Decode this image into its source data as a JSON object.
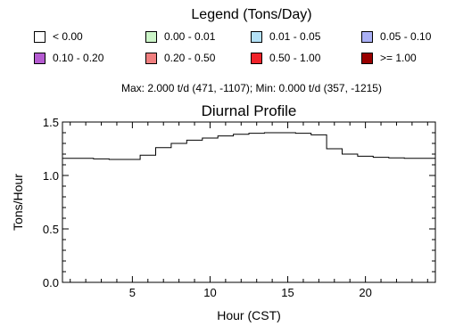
{
  "legend": {
    "title": "Legend (Tons/Day)",
    "items": [
      {
        "label": "< 0.00",
        "color": "#ffffff"
      },
      {
        "label": "0.00 - 0.01",
        "color": "#ccf5c8"
      },
      {
        "label": "0.01 - 0.05",
        "color": "#b4e1f7"
      },
      {
        "label": "0.05 - 0.10",
        "color": "#aab0f5"
      },
      {
        "label": "0.10 - 0.20",
        "color": "#b55bd1"
      },
      {
        "label": "0.20 - 0.50",
        "color": "#f07f7f"
      },
      {
        "label": "0.50 - 1.00",
        "color": "#f0232a"
      },
      {
        "label": ">= 1.00",
        "color": "#990000"
      }
    ]
  },
  "minmax_text": "Max: 2.000 t/d (471, -1107); Min: 0.000 t/d (357, -1215)",
  "chart_data": {
    "type": "line",
    "step": true,
    "title": "Diurnal Profile",
    "xlabel": "Hour (CST)",
    "ylabel": "Tons/Hour",
    "xlim": [
      0.5,
      24.5
    ],
    "ylim": [
      0.0,
      1.5
    ],
    "xticks": [
      5,
      10,
      15,
      20
    ],
    "yticks": [
      0.0,
      0.5,
      1.0,
      1.5
    ],
    "ytick_labels": [
      "0.0",
      "0.5",
      "1.0",
      "1.5"
    ],
    "series": [
      {
        "x": [
          1,
          2,
          3,
          4,
          5,
          6,
          7,
          8,
          9,
          10,
          11,
          12,
          13,
          14,
          15,
          16,
          17,
          18,
          19,
          20,
          21,
          22,
          23,
          24
        ],
        "values": [
          1.16,
          1.16,
          1.155,
          1.15,
          1.15,
          1.19,
          1.26,
          1.3,
          1.33,
          1.35,
          1.37,
          1.385,
          1.395,
          1.4,
          1.4,
          1.395,
          1.38,
          1.25,
          1.2,
          1.18,
          1.17,
          1.165,
          1.16,
          1.16
        ]
      }
    ]
  }
}
